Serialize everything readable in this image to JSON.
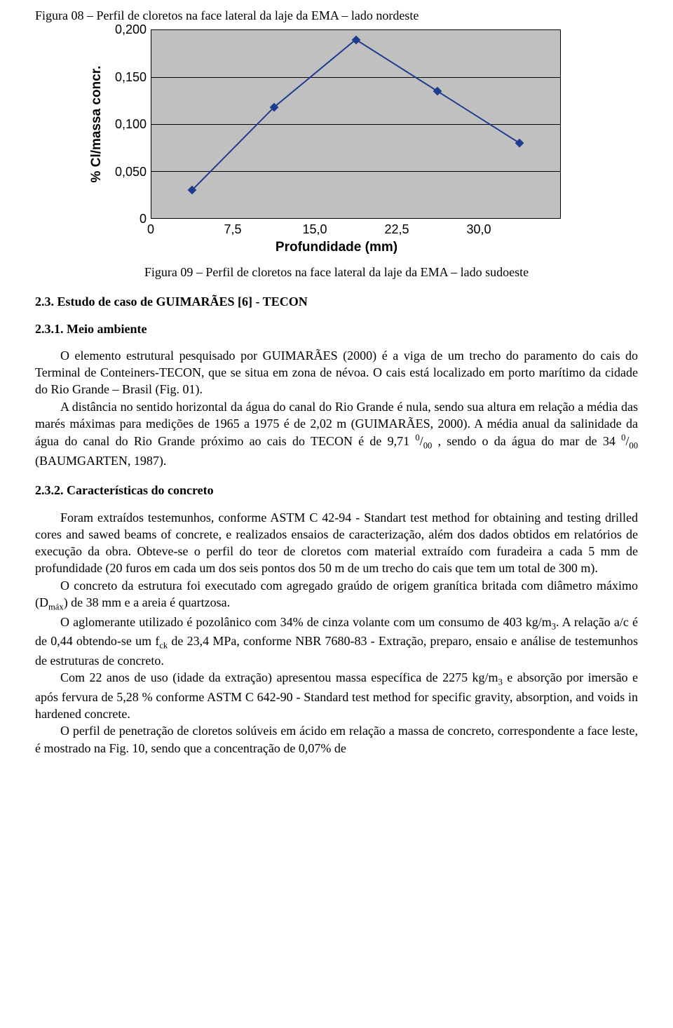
{
  "figure08": {
    "caption": "Figura 08 – Perfil de cloretos na face lateral da laje da EMA – lado nordeste"
  },
  "chart": {
    "type": "line",
    "y_label": "% Cl/massa concr.",
    "x_label": "Profundidade (mm)",
    "y_ticks": [
      "0",
      "0,050",
      "0,100",
      "0,150",
      "0,200"
    ],
    "y_values": [
      0,
      0.05,
      0.1,
      0.15,
      0.2
    ],
    "x_ticks": [
      "0",
      "7,5",
      "15,0",
      "22,5",
      "30,0"
    ],
    "x_values": [
      0,
      7.5,
      15.0,
      22.5,
      30.0
    ],
    "series_x": [
      3.75,
      11.25,
      18.75,
      26.25,
      33.75
    ],
    "series_y": [
      0.03,
      0.118,
      0.19,
      0.135,
      0.08
    ],
    "x_max": 37.5,
    "y_max": 0.2,
    "plot_bg": "#c0c0c0",
    "line_color": "#1f3b8f",
    "marker_color": "#1f3b8f",
    "border_color": "#000000",
    "line_width": 2
  },
  "figure09": {
    "caption": "Figura 09 – Perfil de cloretos na face lateral da laje da EMA – lado sudoeste"
  },
  "section_2_3": {
    "heading": "2.3. Estudo de caso de GUIMARÃES [6] - TECON"
  },
  "section_2_3_1": {
    "heading": "2.3.1. Meio ambiente",
    "p1": "O elemento estrutural pesquisado por GUIMARÃES (2000) é a viga de um trecho do paramento do cais do Terminal de Conteiners-TECON, que se situa em zona de névoa. O cais está localizado em porto marítimo da cidade do Rio Grande – Brasil (Fig. 01).",
    "p2_a": "A distância no sentido horizontal da água do canal do Rio Grande é nula, sendo sua altura em relação a média das marés máximas para medições de 1965 a 1975 é de 2,02 m (GUIMARÃES, 2000). A média anual da salinidade da água do canal do Rio Grande próximo ao cais do TECON é de 9,71 ",
    "p2_unit1": "0",
    "p2_unit2": "/",
    "p2_unit3": "00",
    "p2_b": " , sendo o da água do mar de 34 ",
    "p2_c": " (BAUMGARTEN, 1987)."
  },
  "section_2_3_2": {
    "heading": "2.3.2. Características do concreto",
    "p1": "Foram extraídos testemunhos, conforme ASTM C 42-94 - Standart test method for obtaining and testing drilled cores and sawed beams of concrete, e realizados ensaios de caracterização, além dos dados obtidos em relatórios de execução da obra. Obteve-se o perfil do teor de cloretos com material extraído com furadeira a cada 5 mm de profundidade (20 furos em cada um dos seis pontos dos 50 m de um trecho do cais que tem um total de 300 m).",
    "p2_a": "O concreto da estrutura foi executado com agregado graúdo de origem granítica britada com diâmetro máximo (D",
    "p2_sub1": "máx",
    "p2_b": ") de 38 mm e a areia é quartzosa.",
    "p3_a": "O aglomerante utilizado é pozolânico com 34% de cinza volante com um consumo de 403 kg/m",
    "p3_sub1": "3",
    "p3_b": ". A relação a/c é de 0,44 obtendo-se um f",
    "p3_sub2": "ck",
    "p3_c": " de 23,4 MPa, conforme NBR 7680-83 - Extração, preparo, ensaio e análise de testemunhos de estruturas de concreto.",
    "p4_a": "Com 22 anos de uso (idade da extração) apresentou massa específica de 2275 kg/m",
    "p4_sub1": "3",
    "p4_b": " e absorção por imersão e após fervura de 5,28 % conforme ASTM C 642-90 - Standard test method for specific gravity, absorption, and voids in hardened concrete.",
    "p5": "O perfil de penetração de cloretos solúveis em ácido em relação a massa de concreto, correspondente a face leste, é mostrado na Fig. 10, sendo que a concentração de 0,07% de"
  }
}
